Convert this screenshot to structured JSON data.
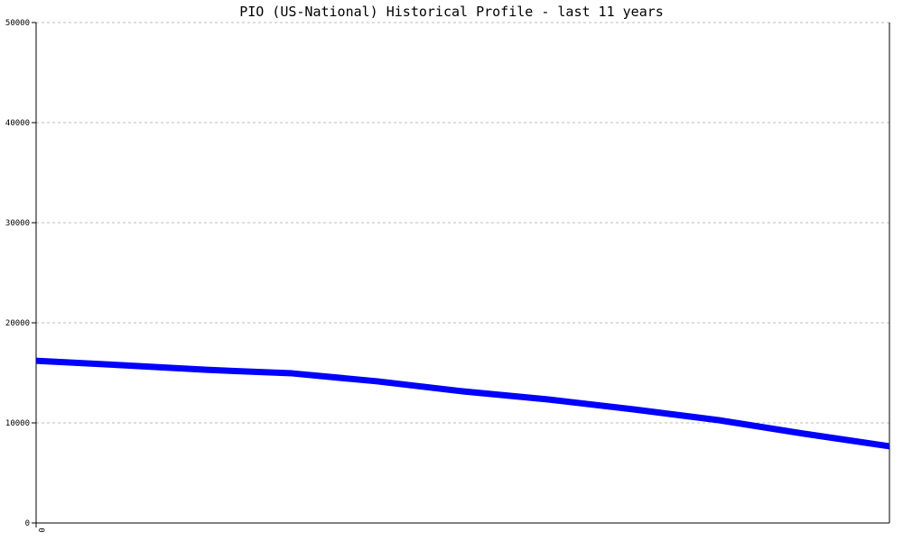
{
  "chart_data": {
    "type": "line",
    "title": "PIO (US-National) Historical Profile - last 11 years",
    "xlabel": "",
    "ylabel": "",
    "ylim": [
      0,
      50000
    ],
    "yticks": [
      "0",
      "10000",
      "20000",
      "30000",
      "40000",
      "50000"
    ],
    "xticks": [
      "0"
    ],
    "grid": true,
    "line_color": "#0000ff",
    "x": [
      0,
      1,
      2,
      3,
      4,
      5,
      6,
      7,
      8,
      9,
      10
    ],
    "values": [
      16200,
      15770,
      15300,
      14950,
      14150,
      13150,
      12340,
      11350,
      10270,
      8920,
      7660
    ]
  }
}
